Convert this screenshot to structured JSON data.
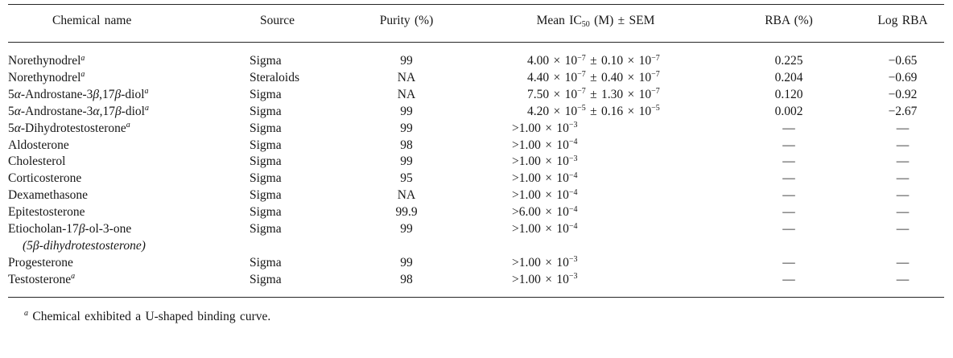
{
  "table": {
    "columns": [
      "Chemical name",
      "Source",
      "Purity (%)",
      "Mean IC_{50} (M) ± SEM",
      "RBA (%)",
      "Log RBA"
    ],
    "rows": [
      {
        "name": "Norethynodrel^{a}",
        "source": "Sigma",
        "purity": "99",
        "ic50": "4.00 × 10^{−7} ± 0.10 × 10^{−7}",
        "rba": "0.225",
        "log_rba": "−0.65"
      },
      {
        "name": "Norethynodrel^{a}",
        "source": "Steraloids",
        "purity": "NA",
        "ic50": "4.40 × 10^{−7} ± 0.40 × 10^{−7}",
        "rba": "0.204",
        "log_rba": "−0.69"
      },
      {
        "name": "5α-Androstane-3β,17β-diol^{a}",
        "source": "Sigma",
        "purity": "NA",
        "ic50": "7.50 × 10^{−7} ± 1.30 × 10^{−7}",
        "rba": "0.120",
        "log_rba": "−0.92"
      },
      {
        "name": "5α-Androstane-3α,17β-diol^{a}",
        "source": "Sigma",
        "purity": "99",
        "ic50": "4.20 × 10^{−5} ± 0.16 × 10^{−5}",
        "rba": "0.002",
        "log_rba": "−2.67"
      },
      {
        "name": "5α-Dihydrotestosterone^{a}",
        "source": "Sigma",
        "purity": "99",
        "ic50": ">1.00 × 10^{−3}",
        "rba": "—",
        "log_rba": "—"
      },
      {
        "name": "Aldosterone",
        "source": "Sigma",
        "purity": "98",
        "ic50": ">1.00 × 10^{−4}",
        "rba": "—",
        "log_rba": "—"
      },
      {
        "name": "Cholesterol",
        "source": "Sigma",
        "purity": "99",
        "ic50": ">1.00 × 10^{−3}",
        "rba": "—",
        "log_rba": "—"
      },
      {
        "name": "Corticosterone",
        "source": "Sigma",
        "purity": "95",
        "ic50": ">1.00 × 10^{−4}",
        "rba": "—",
        "log_rba": "—"
      },
      {
        "name": "Dexamethasone",
        "source": "Sigma",
        "purity": "NA",
        "ic50": ">1.00 × 10^{−4}",
        "rba": "—",
        "log_rba": "—"
      },
      {
        "name": "Epitestosterone",
        "source": "Sigma",
        "purity": "99.9",
        "ic50": ">6.00 × 10^{−4}",
        "rba": "—",
        "log_rba": "—"
      },
      {
        "name": "Etiocholan-17β-ol-3-one",
        "note": "(5β-dihydrotestosterone)",
        "source": "Sigma",
        "purity": "99",
        "ic50": ">1.00 × 10^{−4}",
        "rba": "—",
        "log_rba": "—"
      },
      {
        "name": "Progesterone",
        "source": "Sigma",
        "purity": "99",
        "ic50": ">1.00 × 10^{−3}",
        "rba": "—",
        "log_rba": "—"
      },
      {
        "name": "Testosterone^{a}",
        "source": "Sigma",
        "purity": "98",
        "ic50": ">1.00 × 10^{−3}",
        "rba": "—",
        "log_rba": "—"
      }
    ],
    "footnote": "^{a} Chemical exhibited a U-shaped binding curve."
  }
}
